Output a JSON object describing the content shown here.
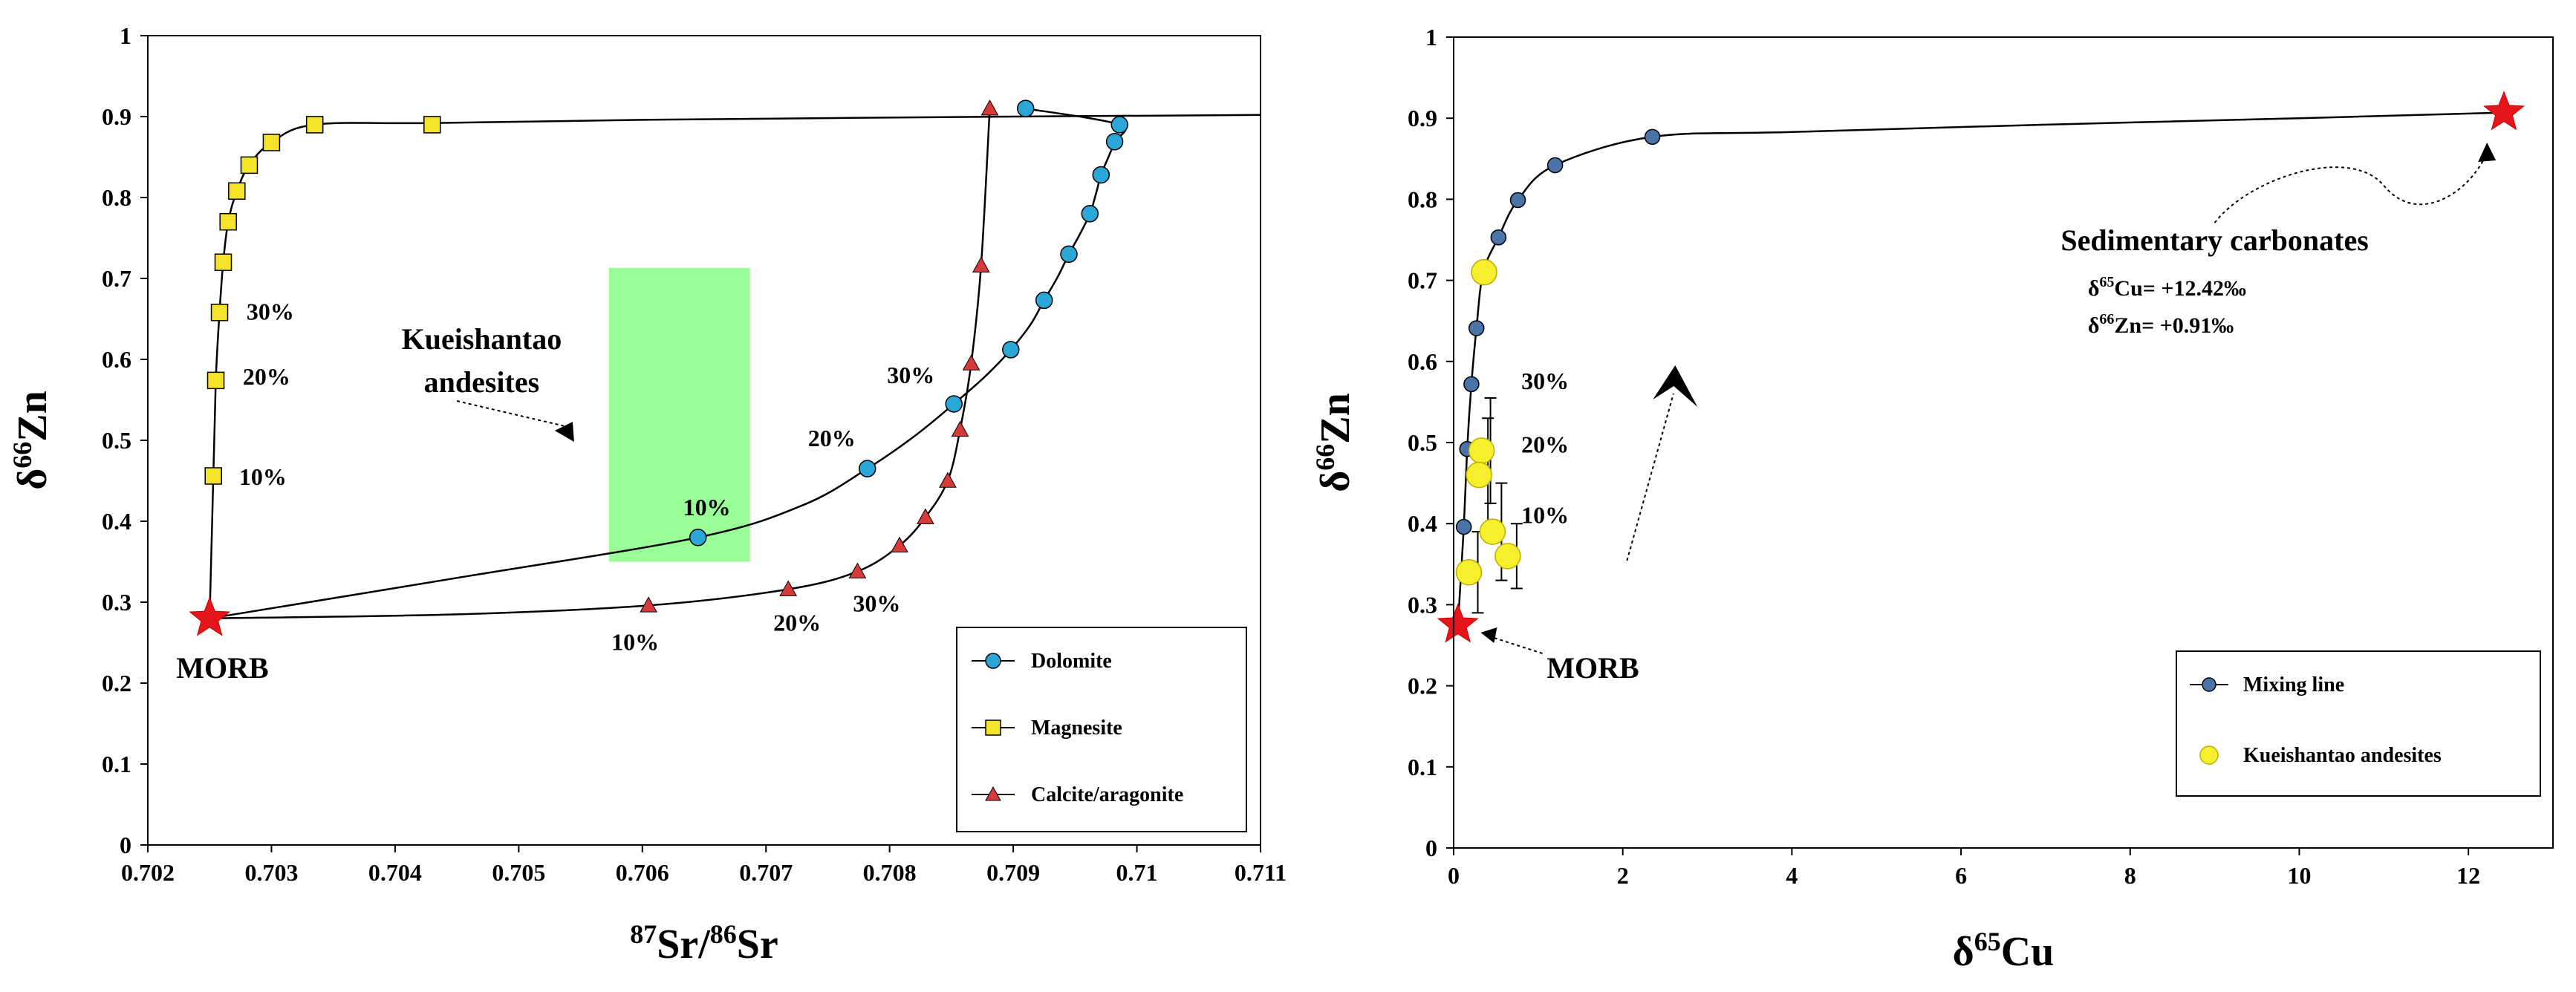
{
  "chart_data": [
    {
      "type": "line",
      "title": "",
      "xlabel_sup": "87",
      "xlabel_mid": "Sr/",
      "xlabel_sup2": "86",
      "xlabel_end": "Sr",
      "ylabel_pre": "δ",
      "ylabel_sup": "66",
      "ylabel_end": "Zn",
      "xlim": [
        0.702,
        0.711
      ],
      "ylim": [
        0,
        1
      ],
      "xticks": [
        0.702,
        0.703,
        0.704,
        0.705,
        0.706,
        0.707,
        0.708,
        0.709,
        0.71,
        0.711
      ],
      "xtick_labels": [
        "0.702",
        "0.703",
        "0.704",
        "0.705",
        "0.706",
        "0.707",
        "0.708",
        "0.709",
        "0.71",
        "0.711"
      ],
      "yticks": [
        0,
        0.1,
        0.2,
        0.3,
        0.4,
        0.5,
        0.6,
        0.7,
        0.8,
        0.9,
        1
      ],
      "ytick_labels": [
        "0",
        "0.1",
        "0.2",
        "0.3",
        "0.4",
        "0.5",
        "0.6",
        "0.7",
        "0.8",
        "0.9",
        "1"
      ],
      "endmember": {
        "name": "MORB",
        "x": 0.7025,
        "y": 0.28
      },
      "series": [
        {
          "name": "Dolomite",
          "marker": "circle",
          "color": "#2aa7d6",
          "x": [
            0.70645,
            0.70782,
            0.70852,
            0.70898,
            0.70925,
            0.70945,
            0.70962,
            0.70971,
            0.70982,
            0.70986,
            0.7091
          ],
          "y": [
            0.38,
            0.465,
            0.545,
            0.612,
            0.673,
            0.73,
            0.78,
            0.828,
            0.869,
            0.89,
            0.91
          ],
          "curve_x": [
            0.7025,
            0.7045,
            0.70645,
            0.7073,
            0.70782,
            0.7082,
            0.70852,
            0.70878,
            0.70898,
            0.70914,
            0.70925,
            0.70936,
            0.70945,
            0.70954,
            0.70962,
            0.70967,
            0.70971,
            0.70977,
            0.70982,
            0.70986,
            0.7091
          ],
          "curve_y": [
            0.28,
            0.33,
            0.38,
            0.42,
            0.465,
            0.505,
            0.545,
            0.58,
            0.612,
            0.643,
            0.673,
            0.702,
            0.73,
            0.755,
            0.78,
            0.805,
            0.828,
            0.85,
            0.869,
            0.89,
            0.91
          ]
        },
        {
          "name": "Magnesite",
          "marker": "square",
          "color": "#f4e22b",
          "x": [
            0.70253,
            0.70255,
            0.70258,
            0.70261,
            0.70265,
            0.70272,
            0.70282,
            0.703,
            0.70335,
            0.7043
          ],
          "y": [
            0.456,
            0.574,
            0.658,
            0.72,
            0.77,
            0.808,
            0.84,
            0.868,
            0.89,
            0.89
          ],
          "curve_x": [
            0.7025,
            0.70253,
            0.70255,
            0.70258,
            0.70261,
            0.70265,
            0.70272,
            0.70282,
            0.703,
            0.70335,
            0.7043,
            0.706,
            0.709,
            0.711
          ],
          "curve_y": [
            0.28,
            0.456,
            0.574,
            0.658,
            0.72,
            0.77,
            0.808,
            0.84,
            0.868,
            0.89,
            0.892,
            0.896,
            0.9,
            0.902
          ]
        },
        {
          "name": "Calcite/aragonite",
          "marker": "triangle",
          "color": "#d63a3a",
          "x": [
            0.70605,
            0.70718,
            0.70774,
            0.70808,
            0.70829,
            0.70847,
            0.70857,
            0.70866,
            0.70874,
            0.70881
          ],
          "y": [
            0.296,
            0.316,
            0.338,
            0.37,
            0.405,
            0.45,
            0.513,
            0.595,
            0.716,
            0.91
          ],
          "curve_x": [
            0.7025,
            0.7045,
            0.70605,
            0.70718,
            0.70774,
            0.70808,
            0.70829,
            0.70847,
            0.70857,
            0.70866,
            0.70874,
            0.70881
          ],
          "curve_y": [
            0.28,
            0.285,
            0.296,
            0.316,
            0.338,
            0.37,
            0.405,
            0.45,
            0.513,
            0.595,
            0.716,
            0.91
          ]
        }
      ],
      "field": {
        "name_line1": "Kueishantao",
        "name_line2": "andesites",
        "x_range": [
          0.70573,
          0.70687
        ],
        "y_range": [
          0.35,
          0.713
        ],
        "color": "#99fd98"
      },
      "annotations": {
        "magnesite_pct": [
          {
            "text": "10%",
            "x": 0.70257,
            "y": 0.456
          },
          {
            "text": "20%",
            "x": 0.7026,
            "y": 0.58
          },
          {
            "text": "30%",
            "x": 0.70263,
            "y": 0.66
          }
        ],
        "dolomite_pct": [
          {
            "text": "10%",
            "x": 0.70645,
            "y": 0.38
          },
          {
            "text": "20%",
            "x": 0.70782,
            "y": 0.465
          },
          {
            "text": "30%",
            "x": 0.70852,
            "y": 0.545
          }
        ],
        "calcite_pct": [
          {
            "text": "10%",
            "x": 0.70605,
            "y": 0.296
          },
          {
            "text": "20%",
            "x": 0.70718,
            "y": 0.316
          },
          {
            "text": "30%",
            "x": 0.70774,
            "y": 0.338
          }
        ]
      },
      "legend": {
        "position": "bottom-right",
        "entries": [
          "Dolomite",
          "Magnesite",
          "Calcite/aragonite"
        ]
      }
    },
    {
      "type": "scatter",
      "title": "",
      "xlabel_pre": "δ",
      "xlabel_sup": "65",
      "xlabel_end": "Cu",
      "ylabel_pre": "δ",
      "ylabel_sup": "66",
      "ylabel_end": "Zn",
      "xlim": [
        0,
        13
      ],
      "ylim": [
        0,
        1
      ],
      "xticks": [
        0,
        2,
        4,
        6,
        8,
        10,
        12
      ],
      "xtick_labels": [
        "0",
        "2",
        "4",
        "6",
        "8",
        "10",
        "12"
      ],
      "yticks": [
        0,
        0.1,
        0.2,
        0.3,
        0.4,
        0.5,
        0.6,
        0.7,
        0.8,
        0.9,
        1
      ],
      "ytick_labels": [
        "0",
        "0.1",
        "0.2",
        "0.3",
        "0.4",
        "0.5",
        "0.6",
        "0.7",
        "0.8",
        "0.9",
        "1"
      ],
      "mixing_line": {
        "name": "Mixing line",
        "color": "#4a74a8",
        "x": [
          0.12,
          0.16,
          0.21,
          0.27,
          0.35,
          0.53,
          0.76,
          1.2,
          2.35
        ],
        "y": [
          0.396,
          0.492,
          0.572,
          0.641,
          0.71,
          0.753,
          0.799,
          0.842,
          0.877
        ],
        "curve_x": [
          0.05,
          0.12,
          0.16,
          0.21,
          0.27,
          0.35,
          0.53,
          0.76,
          1.2,
          2.35,
          4,
          7,
          10,
          12.42
        ],
        "curve_y": [
          0.275,
          0.396,
          0.492,
          0.572,
          0.641,
          0.71,
          0.753,
          0.799,
          0.842,
          0.877,
          0.883,
          0.892,
          0.9,
          0.907
        ]
      },
      "samples": {
        "name": "Kueishantao andesites",
        "color": "#f7ee2e",
        "x": [
          0.36,
          0.33,
          0.3,
          0.46,
          0.64,
          0.18
        ],
        "y": [
          0.71,
          0.49,
          0.46,
          0.39,
          0.36,
          0.34
        ],
        "err": [
          0.0,
          0.065,
          0.07,
          0.06,
          0.04,
          0.05
        ]
      },
      "endmembers": [
        {
          "name": "MORB",
          "x": 0.05,
          "y": 0.275
        },
        {
          "name": "Sedimentary carbonates",
          "x": 12.42,
          "y": 0.907
        }
      ],
      "annotations": {
        "carb_title": "Sedimentary carbonates",
        "cu_line_pre": "δ",
        "cu_line_sup": "65",
        "cu_line_end": "Cu= +12.42‰",
        "zn_line_pre": "δ",
        "zn_line_sup": "66",
        "zn_line_end": "Zn= +0.91‰",
        "pct": [
          "30%",
          "20%",
          "10%"
        ]
      },
      "legend": {
        "position": "bottom-right",
        "entries": [
          "Mixing line",
          "Kueishantao andesites"
        ]
      }
    }
  ]
}
